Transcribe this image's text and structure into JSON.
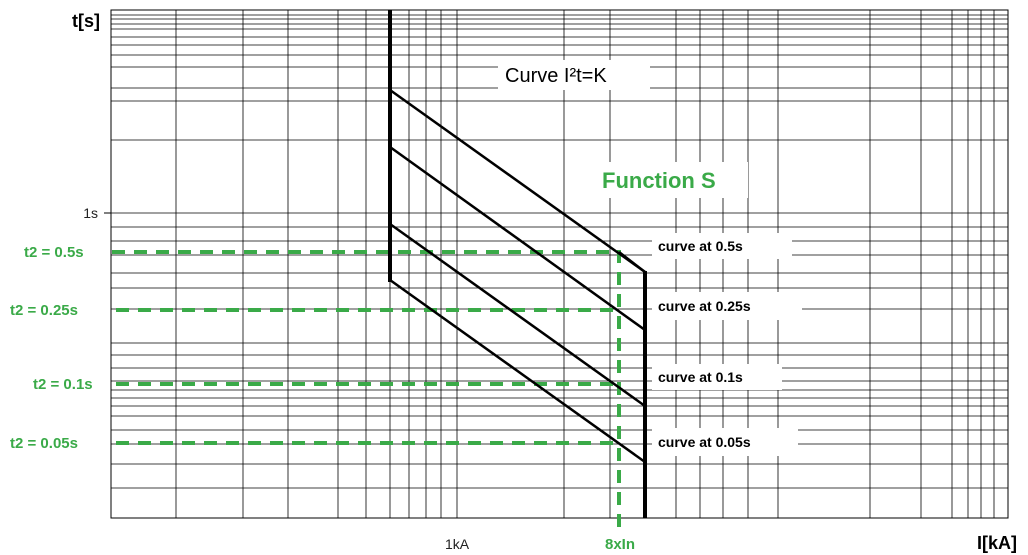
{
  "colors": {
    "green": "#3aaa48",
    "line": "#000000",
    "background": "#ffffff"
  },
  "labels": {
    "y_axis_title": "t[s]",
    "x_axis_title": "I[kA]",
    "y_tick_1s": "1s",
    "x_tick_1ka": "1kA",
    "x_tick_8xin": "8xIn",
    "curve_i2t": "Curve I²t=K",
    "function_s": "Function S"
  },
  "chart_data": {
    "type": "line",
    "xscale": "log",
    "yscale": "log",
    "xlabel": "I[kA]",
    "ylabel": "t[s]",
    "x_ticks": [
      "1kA",
      "8xIn"
    ],
    "y_ticks": [
      "1s"
    ],
    "grid": true,
    "settings": [
      {
        "t2_label": "t2 = 0.5s",
        "curve_label": "curve at 0.5s"
      },
      {
        "t2_label": "t2 = 0.25s",
        "curve_label": "curve at 0.25s"
      },
      {
        "t2_label": "t2 = 0.1s",
        "curve_label": "curve at 0.1s"
      },
      {
        "t2_label": "t2 = 0.05s",
        "curve_label": "curve at 0.05s"
      }
    ]
  }
}
